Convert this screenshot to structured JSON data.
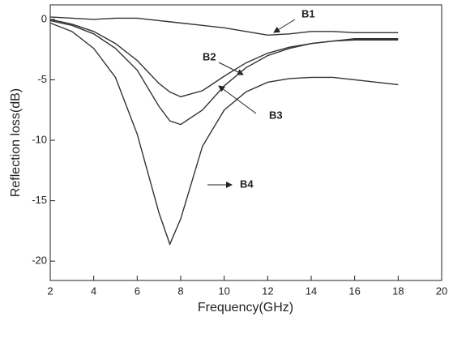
{
  "chart_data": {
    "type": "line",
    "x_label": "Frequency(GHz)",
    "y_label": "Reflection loss(dB)",
    "x": [
      2,
      3,
      4,
      5,
      6,
      7,
      7.5,
      8,
      9,
      10,
      11,
      12,
      13,
      14,
      15,
      16,
      17,
      18
    ],
    "series": [
      {
        "name": "B1",
        "color": "#333333",
        "values": [
          0.2,
          0.1,
          0,
          0.1,
          0.1,
          -0.1,
          -0.2,
          -0.3,
          -0.5,
          -0.7,
          -1.0,
          -1.3,
          -1.2,
          -1.0,
          -1.0,
          -1.1,
          -1.1,
          -1.1
        ]
      },
      {
        "name": "B2",
        "color": "#333333",
        "values": [
          0,
          -0.4,
          -1.0,
          -2.0,
          -3.4,
          -5.3,
          -6.0,
          -6.4,
          -5.9,
          -4.7,
          -3.6,
          -2.8,
          -2.3,
          -2.0,
          -1.8,
          -1.7,
          -1.7,
          -1.7
        ]
      },
      {
        "name": "B3",
        "color": "#333333",
        "values": [
          -0.1,
          -0.5,
          -1.2,
          -2.4,
          -4.2,
          -7.2,
          -8.4,
          -8.7,
          -7.5,
          -5.5,
          -4.0,
          -3.0,
          -2.4,
          -2.0,
          -1.8,
          -1.6,
          -1.6,
          -1.6
        ]
      },
      {
        "name": "B4",
        "color": "#333333",
        "values": [
          -0.3,
          -1.0,
          -2.4,
          -4.8,
          -9.5,
          -16.0,
          -18.6,
          -16.5,
          -10.5,
          -7.5,
          -6.0,
          -5.2,
          -4.9,
          -4.8,
          -4.8,
          -5.0,
          -5.2,
          -5.4
        ]
      }
    ],
    "xlim": [
      2,
      20
    ],
    "xticks": [
      2,
      4,
      6,
      8,
      10,
      12,
      14,
      16,
      18,
      20
    ],
    "ylim": [
      -21.6,
      1.2
    ],
    "yticks": [
      0,
      -5,
      -10,
      -15,
      -20
    ]
  }
}
